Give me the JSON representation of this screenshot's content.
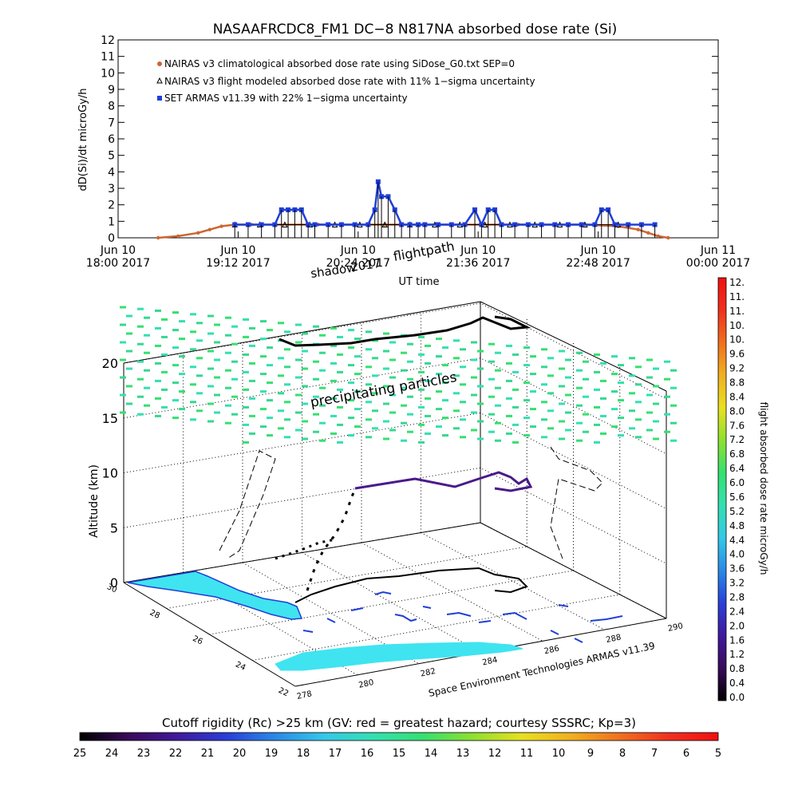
{
  "top_title": "NASAAFRCDC8_FM1 DC−8   N817NA absorbed dose rate (Si)",
  "chart_data": [
    {
      "type": "line",
      "ylabel": "dD(Si)/dt microGy/h",
      "xlabel": "UT time",
      "ylim": [
        0,
        12
      ],
      "y_ticks": [
        "0",
        "1",
        "2",
        "3",
        "4",
        "5",
        "6",
        "7",
        "8",
        "9",
        "10",
        "11",
        "12"
      ],
      "x_ticks": [
        {
          "line1": "Jun 10",
          "line2": "18:00 2017"
        },
        {
          "line1": "Jun 10",
          "line2": "19:12 2017"
        },
        {
          "line1": "Jun 10",
          "line2": "20:24 2017"
        },
        {
          "line1": "Jun 10",
          "line2": "21:36 2017"
        },
        {
          "line1": "Jun 10",
          "line2": "22:48 2017"
        },
        {
          "line1": "Jun 11",
          "line2": "00:00 2017"
        }
      ],
      "xlim_minutes": [
        0,
        360
      ],
      "legend": [
        {
          "label": "NAIRAS v3 climatological absorbed dose rate using SiDose_G0.txt SEP=0",
          "color": "#cc6633",
          "marker": "diamond"
        },
        {
          "label": "NAIRAS v3 flight modeled absorbed dose rate with 11% 1−sigma uncertainty",
          "color": "#000000",
          "marker": "triangle"
        },
        {
          "label": "SET ARMAS v11.39 with 22% 1−sigma uncertainty",
          "color": "#1f3fd8",
          "marker": "square"
        }
      ],
      "series": [
        {
          "name": "NAIRAS v3 climatological absorbed dose rate using SiDose_G0.txt SEP=0",
          "x": [
            24,
            36,
            48,
            55,
            62,
            70,
            80,
            120,
            160,
            200,
            240,
            280,
            300,
            312,
            318,
            324,
            330
          ],
          "y": [
            0.0,
            0.1,
            0.3,
            0.5,
            0.7,
            0.8,
            0.8,
            0.8,
            0.8,
            0.8,
            0.8,
            0.8,
            0.7,
            0.5,
            0.3,
            0.1,
            0.0
          ]
        },
        {
          "name": "NAIRAS v3 flight modeled absorbed dose rate with 11% 1−sigma uncertainty",
          "x": [
            70,
            85,
            100,
            115,
            130,
            145,
            160,
            175,
            190,
            205,
            220,
            235,
            250,
            265,
            280,
            300
          ],
          "y": [
            0.8,
            0.8,
            0.8,
            0.8,
            0.8,
            0.8,
            0.8,
            0.8,
            0.8,
            0.8,
            0.8,
            0.8,
            0.8,
            0.8,
            0.8,
            0.8
          ]
        },
        {
          "name": "SET ARMAS v11.39 with 22% 1−sigma uncertainty",
          "x": [
            70,
            78,
            86,
            94,
            98,
            102,
            106,
            110,
            114,
            118,
            126,
            134,
            142,
            150,
            154,
            156,
            158,
            162,
            166,
            170,
            175,
            180,
            184,
            192,
            200,
            208,
            214,
            218,
            222,
            226,
            230,
            238,
            246,
            254,
            262,
            270,
            278,
            286,
            290,
            294,
            298,
            306,
            314,
            322
          ],
          "y": [
            0.8,
            0.8,
            0.8,
            0.8,
            1.7,
            1.7,
            1.7,
            1.7,
            0.8,
            0.8,
            0.8,
            0.8,
            0.8,
            0.8,
            1.7,
            3.4,
            2.5,
            2.5,
            1.7,
            0.8,
            0.8,
            0.8,
            0.8,
            0.8,
            0.8,
            0.8,
            1.7,
            0.8,
            1.7,
            1.7,
            0.8,
            0.8,
            0.8,
            0.8,
            0.8,
            0.8,
            0.8,
            0.8,
            1.7,
            1.7,
            0.8,
            0.8,
            0.8,
            0.8
          ]
        }
      ]
    },
    {
      "type": "scatter",
      "title": "",
      "zlabel": "Altitude (km)",
      "z_ticks": [
        "0",
        "5",
        "10",
        "15",
        "20"
      ],
      "zlim": [
        0,
        20
      ],
      "y_axis_ticks": [
        "30",
        "28",
        "26",
        "24",
        "22"
      ],
      "x_axis_ticks": [
        "278",
        "280",
        "282",
        "284",
        "286",
        "288",
        "290"
      ],
      "annotations": [
        "shadow",
        "2017",
        "flightpath",
        "precipitating particles"
      ],
      "credit": "Space Environment Technologies ARMAS v11.39",
      "flight_path_lonlat_alt": [
        {
          "lon": 278.6,
          "lat": 27.8,
          "alt": 0.5
        },
        {
          "lon": 279.6,
          "lat": 27.0,
          "alt": 3.0
        },
        {
          "lon": 280.4,
          "lat": 26.4,
          "alt": 6.0
        },
        {
          "lon": 281.0,
          "lat": 26.0,
          "alt": 8.0
        },
        {
          "lon": 282.4,
          "lat": 26.0,
          "alt": 10.0
        },
        {
          "lon": 284.4,
          "lat": 26.2,
          "alt": 11.0
        },
        {
          "lon": 286.0,
          "lat": 26.6,
          "alt": 11.5
        },
        {
          "lon": 287.4,
          "lat": 26.8,
          "alt": 11.0
        },
        {
          "lon": 287.0,
          "lat": 27.2,
          "alt": 11.8
        }
      ]
    }
  ],
  "dose_colorbar": {
    "label": "flight absorbed dose rate microGy/h",
    "ticks": [
      "12.",
      "11.",
      "11.",
      "10.",
      "10.",
      "9.6",
      "9.2",
      "8.8",
      "8.4",
      "8.0",
      "7.6",
      "7.2",
      "6.8",
      "6.4",
      "6.0",
      "5.6",
      "5.2",
      "4.8",
      "4.4",
      "4.0",
      "3.6",
      "3.2",
      "2.8",
      "2.4",
      "2.0",
      "1.6",
      "1.2",
      "0.8",
      "0.4",
      "0.0"
    ]
  },
  "rigidity_colorbar": {
    "label": "Cutoff rigidity (Rc) >25 km (GV: red = greatest hazard; courtesy SSSRC; Kp=3)",
    "ticks": [
      "25",
      "24",
      "23",
      "22",
      "21",
      "20",
      "19",
      "18",
      "17",
      "16",
      "15",
      "14",
      "13",
      "12",
      "11",
      "10",
      "9",
      "8",
      "7",
      "6",
      "5"
    ]
  },
  "colors": {
    "dose_scale": [
      "#000000",
      "#3a0a5a",
      "#3f1a9c",
      "#2a3fd8",
      "#2a8ae6",
      "#35c8e8",
      "#33e0b0",
      "#35e070",
      "#8ee030",
      "#e8e020",
      "#f0b020",
      "#f07020",
      "#f03020",
      "#f01010"
    ],
    "rigidity_scale": [
      "#000000",
      "#3a0a5a",
      "#3f1a9c",
      "#2a3fd8",
      "#2a8ae6",
      "#35c8e8",
      "#33e0b0",
      "#35e070",
      "#8ee030",
      "#e8e020",
      "#f0b020",
      "#f07020",
      "#f03020",
      "#f01010"
    ],
    "land": "#3fe4f0",
    "coast": "#1f3fd8",
    "grid": "#000000"
  }
}
